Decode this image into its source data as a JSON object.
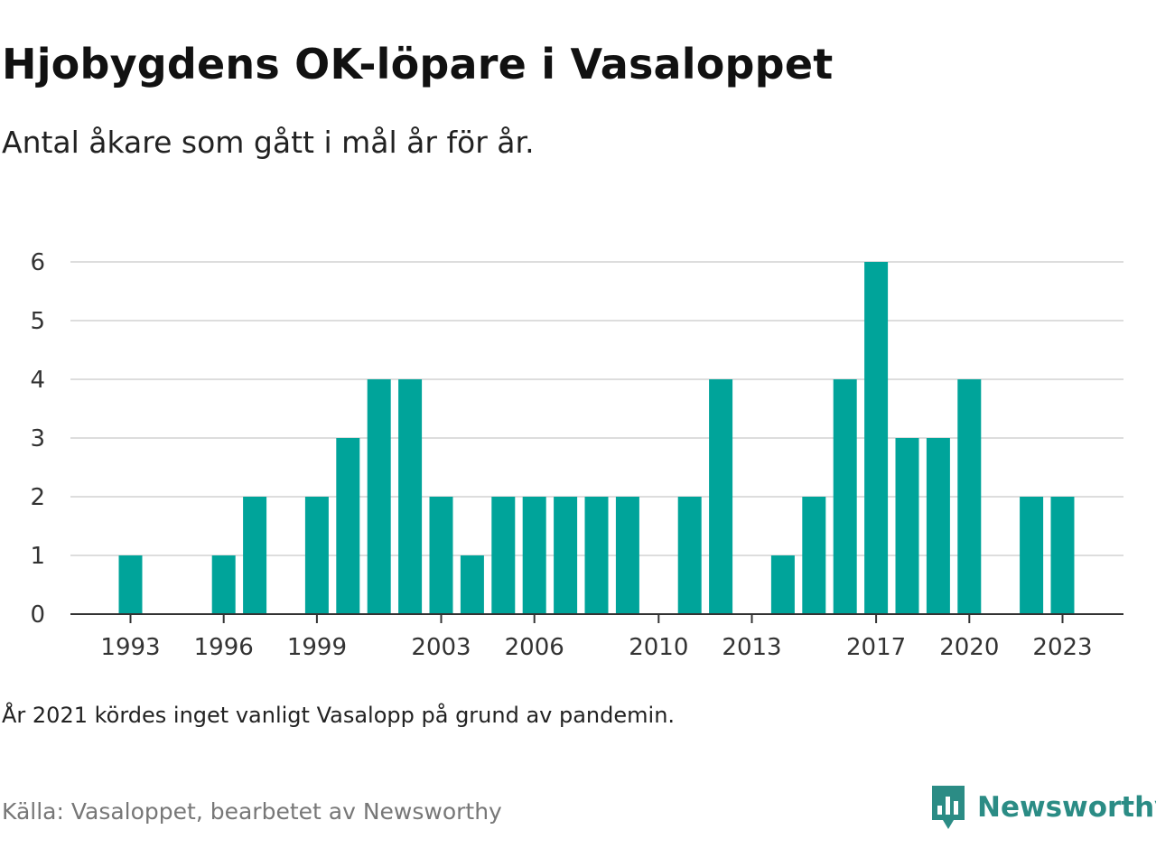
{
  "title": "Hjobygdens OK-löpare i Vasaloppet",
  "subtitle": "Antal åkare som gått i mål år för år.",
  "note": "År 2021 kördes inget vanligt Vasalopp på grund av pandemin.",
  "source": "Källa: Vasaloppet, bearbetet av Newsworthy",
  "brand": {
    "name": "Newsworthy",
    "icon": "newsworthy-logo-icon",
    "color": "#2b8c85"
  },
  "colors": {
    "bar": "#00a49a",
    "grid": "#dddddd",
    "axis": "#333333"
  },
  "chart_data": {
    "type": "bar",
    "title": "Hjobygdens OK-löpare i Vasaloppet",
    "subtitle": "Antal åkare som gått i mål år för år.",
    "xlabel": "",
    "ylabel": "",
    "ylim": [
      0,
      6
    ],
    "yticks": [
      0,
      1,
      2,
      3,
      4,
      5,
      6
    ],
    "xlim": [
      1991,
      2024
    ],
    "xticks": [
      1993,
      1996,
      1999,
      2003,
      2006,
      2010,
      2013,
      2017,
      2020,
      2023
    ],
    "grid": true,
    "legend": "none",
    "x": [
      1993,
      1996,
      1997,
      1999,
      2000,
      2001,
      2002,
      2003,
      2004,
      2005,
      2006,
      2007,
      2008,
      2009,
      2011,
      2012,
      2014,
      2015,
      2016,
      2017,
      2018,
      2019,
      2020,
      2022,
      2023
    ],
    "values": [
      1,
      1,
      2,
      2,
      3,
      4,
      4,
      2,
      1,
      2,
      2,
      2,
      2,
      2,
      2,
      4,
      1,
      2,
      4,
      6,
      3,
      3,
      4,
      2,
      2
    ]
  }
}
